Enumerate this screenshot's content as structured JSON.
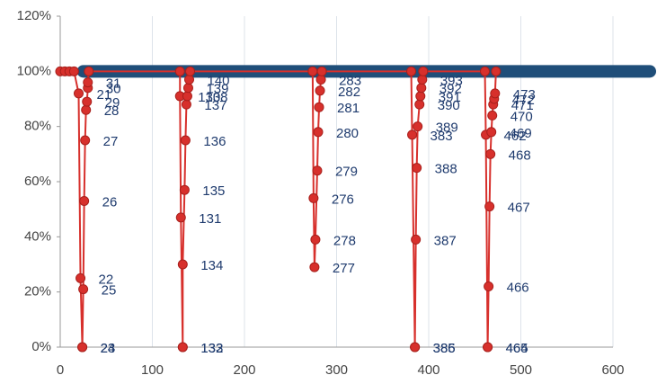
{
  "chart_data": {
    "type": "scatter",
    "xlim": [
      0,
      600
    ],
    "xticks": [
      0,
      100,
      200,
      300,
      400,
      500,
      600
    ],
    "ylim": [
      0,
      120
    ],
    "yticks": [
      {
        "value": 0,
        "label": "0%"
      },
      {
        "value": 20,
        "label": "20%"
      },
      {
        "value": 40,
        "label": "40%"
      },
      {
        "value": 60,
        "label": "60%"
      },
      {
        "value": 80,
        "label": "80%"
      },
      {
        "value": 100,
        "label": "100%"
      },
      {
        "value": 120,
        "label": "120%"
      }
    ],
    "grid": true,
    "series": [
      {
        "color": "#1f4e79",
        "x": [
          25,
          640
        ],
        "values": [
          100,
          100
        ]
      },
      {
        "color": "#d7302c",
        "x": [
          0,
          5,
          10,
          15,
          20,
          22,
          24,
          24,
          25,
          26,
          27,
          28,
          29,
          30,
          30,
          31,
          130,
          130,
          131,
          133,
          133,
          133,
          135,
          136,
          137,
          138,
          139,
          140,
          141,
          274,
          275,
          276,
          277,
          279,
          280,
          281,
          282,
          283,
          284,
          381,
          382,
          385,
          385,
          386,
          387,
          388,
          390,
          391,
          392,
          393,
          394,
          461,
          462,
          464,
          464,
          465,
          466,
          467,
          468,
          469,
          470,
          471,
          472,
          473
        ],
        "values": [
          100,
          100,
          100,
          100,
          92,
          25,
          0,
          0,
          21,
          53,
          75,
          86,
          89,
          94,
          96,
          100,
          100,
          91,
          47,
          0,
          0,
          30,
          57,
          75,
          88,
          91,
          94,
          97,
          100,
          100,
          54,
          29,
          39,
          64,
          78,
          87,
          93,
          97,
          100,
          100,
          77,
          0,
          0,
          39,
          65,
          80,
          88,
          91,
          94,
          97,
          100,
          100,
          77,
          0,
          0,
          22,
          51,
          70,
          78,
          84,
          88,
          90,
          92,
          100
        ],
        "labels": [
          null,
          null,
          null,
          null,
          21,
          22,
          23,
          24,
          25,
          26,
          27,
          28,
          29,
          30,
          31,
          null,
          null,
          130,
          131,
          132,
          133,
          134,
          135,
          136,
          137,
          138,
          139,
          140,
          null,
          null,
          276,
          277,
          278,
          279,
          280,
          281,
          282,
          283,
          null,
          null,
          383,
          385,
          386,
          387,
          388,
          389,
          390,
          391,
          392,
          393,
          null,
          null,
          462,
          464,
          465,
          466,
          467,
          468,
          469,
          470,
          471,
          472,
          473,
          null
        ]
      }
    ]
  }
}
